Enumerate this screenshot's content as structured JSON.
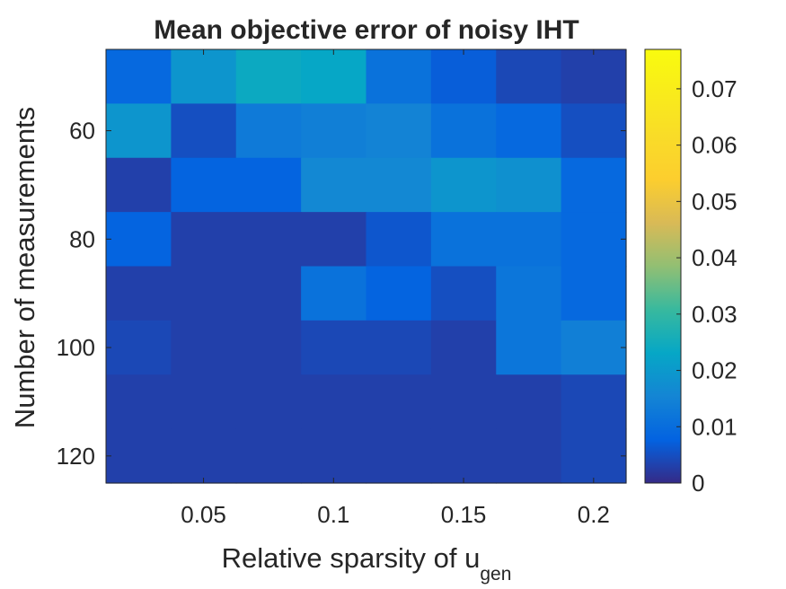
{
  "chart_data": {
    "type": "heatmap",
    "title": "Mean objective error of noisy IHT",
    "xlabel": "Relative sparsity of u",
    "xlabel_subscript": "gen",
    "ylabel": "Number of measurements",
    "x": [
      0.025,
      0.05,
      0.075,
      0.1,
      0.125,
      0.15,
      0.175,
      0.2
    ],
    "y": [
      50,
      60,
      70,
      80,
      90,
      100,
      110,
      120
    ],
    "x_ticks": [
      0.05,
      0.1,
      0.15,
      0.2
    ],
    "x_tick_labels": [
      "0.05",
      "0.1",
      "0.15",
      "0.2"
    ],
    "y_ticks": [
      60,
      80,
      100,
      120
    ],
    "y_tick_labels": [
      "60",
      "80",
      "100",
      "120"
    ],
    "values": [
      [
        0.009,
        0.019,
        0.024,
        0.023,
        0.011,
        0.007,
        0.004,
        0.003
      ],
      [
        0.019,
        0.005,
        0.013,
        0.014,
        0.015,
        0.011,
        0.009,
        0.005
      ],
      [
        0.003,
        0.008,
        0.008,
        0.016,
        0.016,
        0.019,
        0.018,
        0.009
      ],
      [
        0.008,
        0.003,
        0.003,
        0.003,
        0.006,
        0.011,
        0.011,
        0.009
      ],
      [
        0.003,
        0.003,
        0.003,
        0.011,
        0.008,
        0.005,
        0.012,
        0.009
      ],
      [
        0.004,
        0.003,
        0.003,
        0.004,
        0.004,
        0.003,
        0.012,
        0.014
      ],
      [
        0.003,
        0.003,
        0.003,
        0.003,
        0.003,
        0.003,
        0.003,
        0.004
      ],
      [
        0.003,
        0.003,
        0.003,
        0.003,
        0.003,
        0.003,
        0.003,
        0.004
      ]
    ],
    "colormap": "parula",
    "clim": [
      0,
      0.077
    ],
    "colorbar_ticks": [
      0,
      0.01,
      0.02,
      0.03,
      0.04,
      0.05,
      0.06,
      0.07
    ],
    "colorbar_tick_labels": [
      "0",
      "0.01",
      "0.02",
      "0.03",
      "0.04",
      "0.05",
      "0.06",
      "0.07"
    ],
    "colorbar_position": "right",
    "grid": false
  }
}
